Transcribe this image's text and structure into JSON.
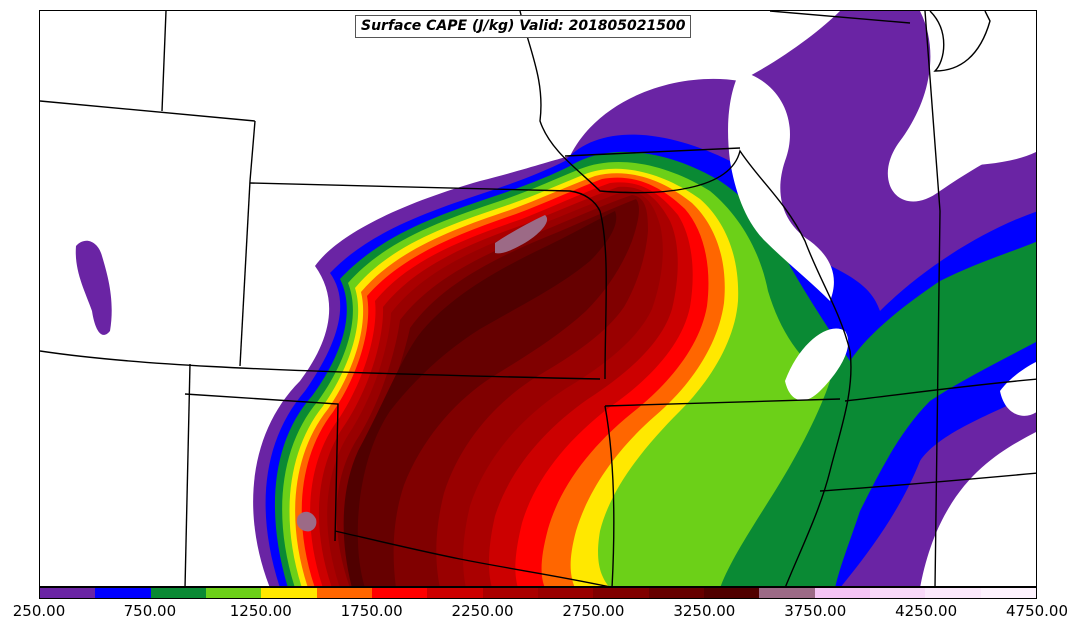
{
  "title": "Surface CAPE (J/kg) Valid: 201805021500",
  "colors": {
    "c250": "#6a24a4",
    "c500": "#0000ff",
    "c750": "#0a8a34",
    "c1000": "#6cd018",
    "c1250": "#ffe800",
    "c1500": "#ff6600",
    "c1750": "#ff0000",
    "c2000": "#cc0000",
    "c2250": "#aa0000",
    "c2500": "#990000",
    "c2750": "#800000",
    "c3000": "#660000",
    "c3250": "#500000",
    "c3500": "#9c6a86",
    "c3750": "#f4c4f4",
    "c4000": "#f8d8f8",
    "c4250": "#fbe8fb",
    "c4500": "#fdf2fd"
  },
  "colorbar": {
    "levels": [
      250,
      500,
      750,
      1000,
      1250,
      1500,
      1750,
      2000,
      2250,
      2500,
      2750,
      3000,
      3250,
      3500,
      3750,
      4000,
      4250,
      4500
    ],
    "tick_labels": [
      "250.00",
      "750.00",
      "1250.00",
      "1750.00",
      "2250.00",
      "2750.00",
      "3250.00",
      "3750.00",
      "4250.00",
      "4750.00"
    ]
  }
}
